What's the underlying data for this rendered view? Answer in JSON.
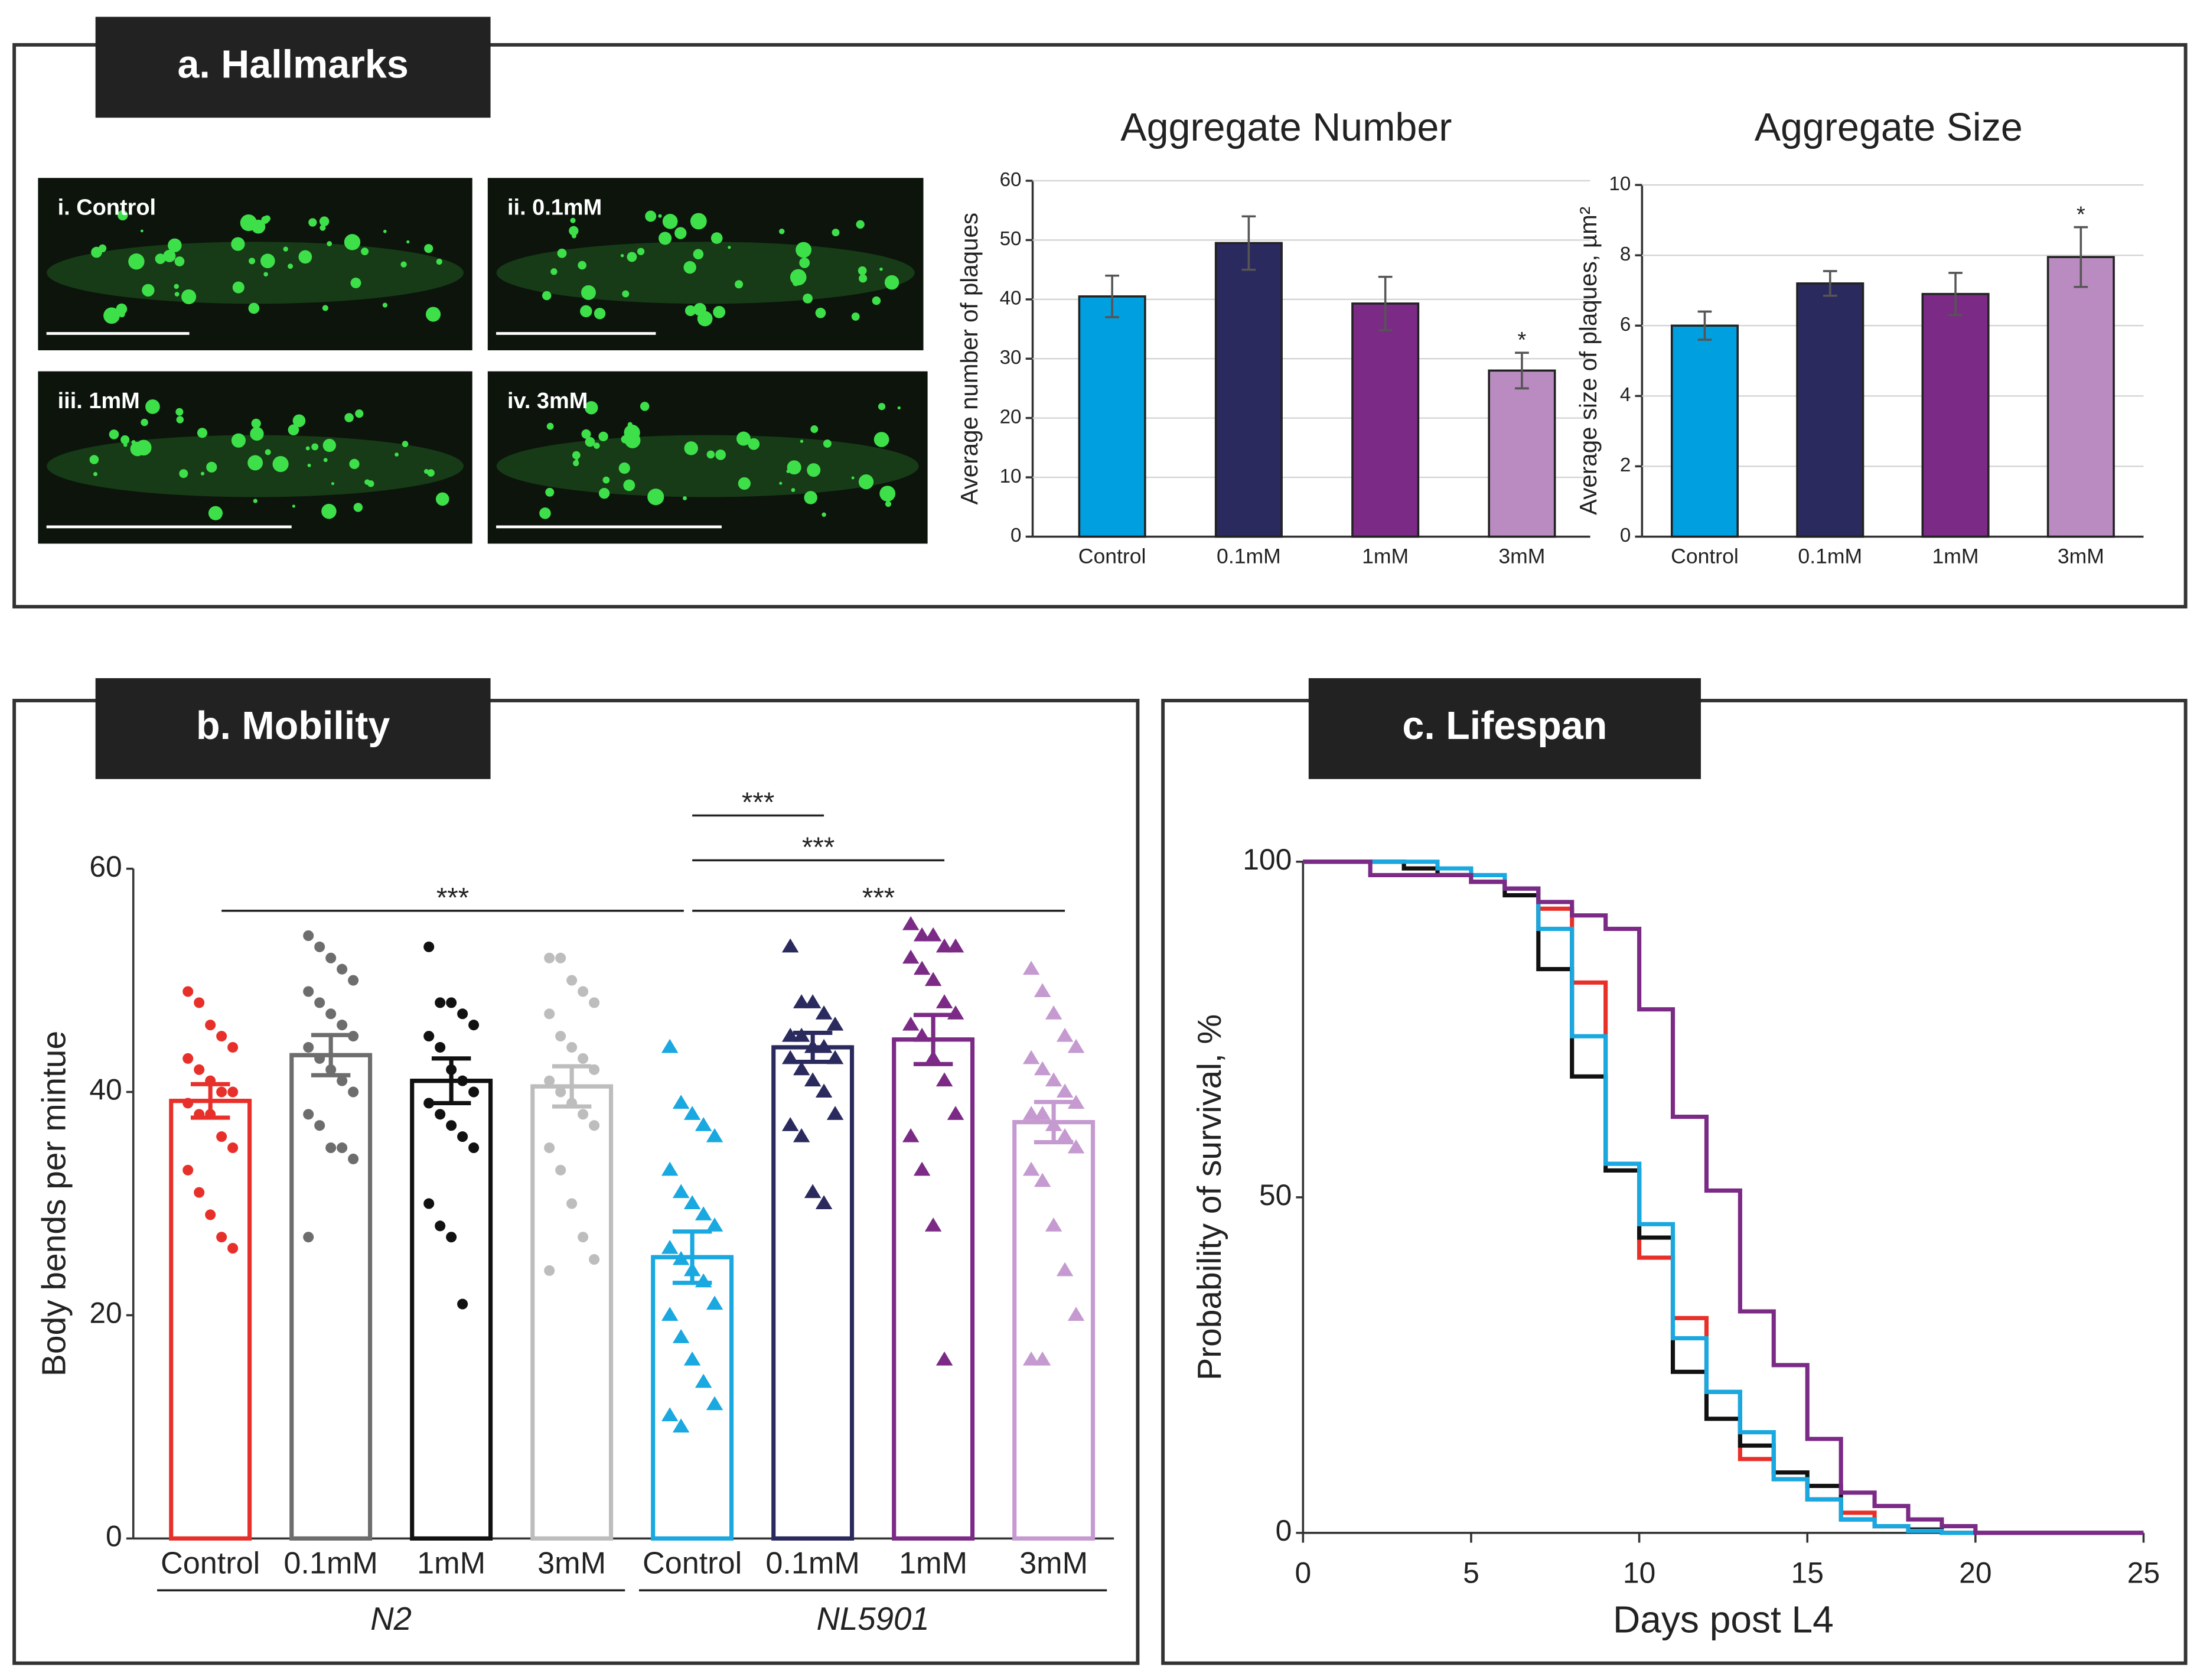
{
  "panels": [
    "a. Hallmarks",
    "b. Mobility",
    "c. Lifespan"
  ],
  "images": [
    "i. Control",
    "ii. 0.1mM",
    "iii. 1mM",
    "iv. 3mM"
  ],
  "chart_data": [
    {
      "type": "bar",
      "title": "Aggregate Number",
      "ylabel": "Average number of plaques",
      "categories": [
        "Control",
        "0.1mM",
        "1mM",
        "3mM"
      ],
      "values": [
        40.5,
        49.5,
        39.3,
        28
      ],
      "errors": [
        3.5,
        4.5,
        4.5,
        3
      ],
      "colors": [
        "#00a0e0",
        "#2b2a5e",
        "#7b2a86",
        "#b98bc0"
      ],
      "significance": [
        null,
        null,
        null,
        "*"
      ],
      "ylim": [
        0,
        60
      ],
      "yticks": [
        0,
        10,
        20,
        30,
        40,
        50,
        60
      ],
      "grid": true
    },
    {
      "type": "bar",
      "title": "Aggregate Size",
      "ylabel": "Average size of plaques, µm²",
      "categories": [
        "Control",
        "0.1mM",
        "1mM",
        "3mM"
      ],
      "values": [
        6.0,
        7.2,
        6.9,
        7.95
      ],
      "errors": [
        0.4,
        0.35,
        0.6,
        0.85
      ],
      "colors": [
        "#00a0e0",
        "#2b2a5e",
        "#7b2a86",
        "#b98bc0"
      ],
      "significance": [
        null,
        null,
        null,
        "*"
      ],
      "ylim": [
        0,
        10
      ],
      "yticks": [
        0,
        2,
        4,
        6,
        8,
        10
      ],
      "grid": true
    },
    {
      "type": "dotbar",
      "ylabel": "Body bends per mintue",
      "categories": [
        "Control",
        "0.1mM",
        "1mM",
        "3mM",
        "Control",
        "0.1mM",
        "1mM",
        "3mM"
      ],
      "groups": [
        "N2",
        "NL5901"
      ],
      "values": [
        39.2,
        43.3,
        41.0,
        40.5,
        25.2,
        44.0,
        44.7,
        37.3
      ],
      "errors": [
        1.5,
        1.8,
        2.0,
        1.8,
        2.3,
        1.3,
        2.2,
        1.8
      ],
      "colors": [
        "#e8302a",
        "#6d6d6d",
        "#111111",
        "#bdbdbd",
        "#19a8e0",
        "#2b2a5e",
        "#7b2a86",
        "#c59ad0"
      ],
      "markers": [
        "circle",
        "circle",
        "circle",
        "circle",
        "triangle",
        "triangle",
        "triangle",
        "triangle"
      ],
      "points": [
        [
          49,
          48,
          46,
          45,
          44,
          43,
          42,
          41,
          40,
          40,
          39,
          38,
          38,
          36,
          35,
          33,
          31,
          29,
          27,
          26
        ],
        [
          54,
          53,
          52,
          51,
          50,
          49,
          48,
          47,
          46,
          45,
          44,
          43,
          42,
          41,
          40,
          38,
          37,
          35,
          35,
          34,
          27
        ],
        [
          53,
          48,
          48,
          47,
          46,
          45,
          44,
          42,
          41,
          40,
          39,
          38,
          37,
          36,
          35,
          30,
          28,
          27,
          21
        ],
        [
          52,
          52,
          50,
          49,
          48,
          47,
          45,
          44,
          43,
          42,
          41,
          40,
          39,
          38,
          37,
          35,
          33,
          30,
          27,
          25,
          24
        ],
        [
          44,
          39,
          38,
          37,
          36,
          33,
          31,
          30,
          29,
          28,
          26,
          25,
          24,
          23,
          21,
          20,
          18,
          16,
          14,
          12,
          11,
          10
        ],
        [
          53,
          48,
          48,
          47,
          46,
          45,
          45,
          44,
          44,
          43,
          43,
          42,
          41,
          40,
          38,
          37,
          36,
          31,
          30
        ],
        [
          55,
          54,
          54,
          53,
          53,
          52,
          51,
          50,
          48,
          47,
          46,
          45,
          43,
          41,
          38,
          36,
          33,
          28,
          16
        ],
        [
          51,
          49,
          47,
          45,
          44,
          43,
          42,
          41,
          40,
          39,
          38,
          38,
          37,
          36,
          35,
          33,
          32,
          28,
          24,
          20,
          16,
          16
        ]
      ],
      "annotations": [
        "***",
        "***",
        "***",
        "***"
      ],
      "ylim": [
        0,
        60
      ],
      "yticks": [
        0,
        20,
        40,
        60
      ]
    },
    {
      "type": "line",
      "step": true,
      "xlabel": "Days post L4",
      "ylabel": "Probability of survival, %",
      "x": [
        0,
        2,
        3,
        4,
        5,
        6,
        7,
        8,
        9,
        10,
        11,
        12,
        13,
        14,
        15,
        16,
        17,
        18,
        19,
        20,
        25
      ],
      "series": [
        {
          "color": "#e8302a",
          "values": [
            100,
            100,
            99,
            98,
            97,
            96,
            93,
            82,
            55,
            41,
            32,
            21,
            11,
            8,
            5,
            3,
            1,
            0.5,
            0,
            0,
            0
          ]
        },
        {
          "color": "#111111",
          "values": [
            100,
            100,
            99,
            98,
            97,
            95,
            84,
            68,
            54,
            44,
            24,
            17,
            13,
            9,
            7,
            2,
            1,
            0.5,
            0,
            0,
            0
          ]
        },
        {
          "color": "#19a8e0",
          "values": [
            100,
            100,
            100,
            99,
            98,
            96,
            90,
            74,
            55,
            46,
            29,
            21,
            15,
            8,
            5,
            2,
            1,
            0.3,
            0,
            0,
            0
          ]
        },
        {
          "color": "#7b2a86",
          "values": [
            100,
            98,
            98,
            98,
            97,
            96,
            94,
            92,
            90,
            78,
            62,
            51,
            33,
            25,
            14,
            6,
            4,
            2,
            1,
            0,
            0
          ]
        }
      ],
      "xlim": [
        0,
        25
      ],
      "xticks": [
        0,
        5,
        10,
        15,
        20,
        25
      ],
      "ylim": [
        0,
        100
      ],
      "yticks": [
        0,
        50,
        100
      ]
    }
  ]
}
